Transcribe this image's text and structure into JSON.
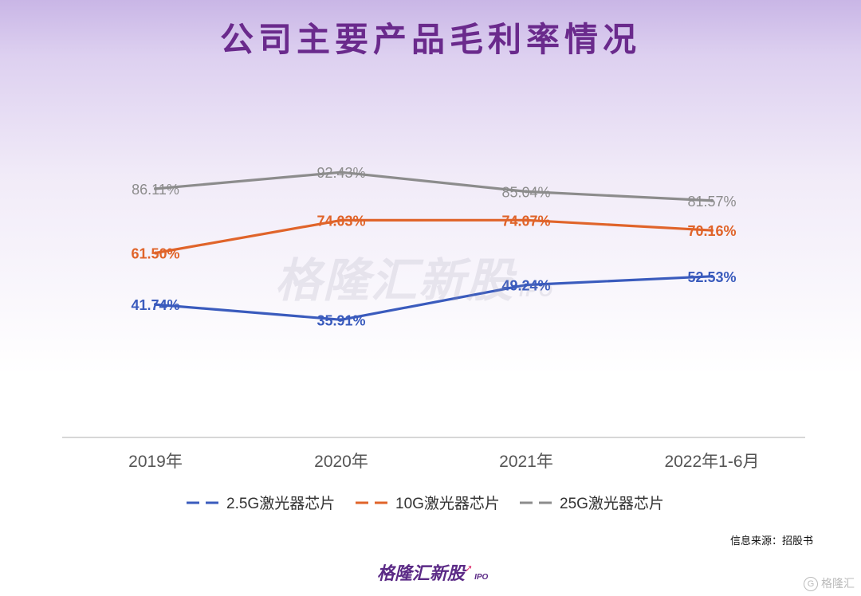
{
  "title": "公司主要产品毛利率情况",
  "source": "信息来源：招股书",
  "watermark": {
    "text": "格隆汇新股",
    "sub": "IPO"
  },
  "brand": {
    "text": "格隆汇新股",
    "sub": "IPO"
  },
  "corner_logo": "格隆汇",
  "colors": {
    "title": "#6a2a8c",
    "s1": "#3a5bbd",
    "s2": "#e0642a",
    "s3": "#8c8c8c"
  },
  "chart_data": {
    "type": "line",
    "categories": [
      "2019年",
      "2020年",
      "2021年",
      "2022年1-6月"
    ],
    "series": [
      {
        "name": "2.5G激光器芯片",
        "values": [
          41.74,
          35.91,
          49.24,
          52.53
        ],
        "labels": [
          "41.74%",
          "35.91%",
          "49.24%",
          "52.53%"
        ],
        "color": "#3a5bbd"
      },
      {
        "name": "10G激光器芯片",
        "values": [
          61.5,
          74.03,
          74.07,
          70.16
        ],
        "labels": [
          "61.50%",
          "74.03%",
          "74.07%",
          "70.16%"
        ],
        "color": "#e0642a"
      },
      {
        "name": "25G激光器芯片",
        "values": [
          86.11,
          92.43,
          85.04,
          81.57
        ],
        "labels": [
          "86.11%",
          "92.43%",
          "85.04%",
          "81.57%"
        ],
        "color": "#8c8c8c"
      }
    ],
    "legend_position": "bottom",
    "grid": false
  }
}
